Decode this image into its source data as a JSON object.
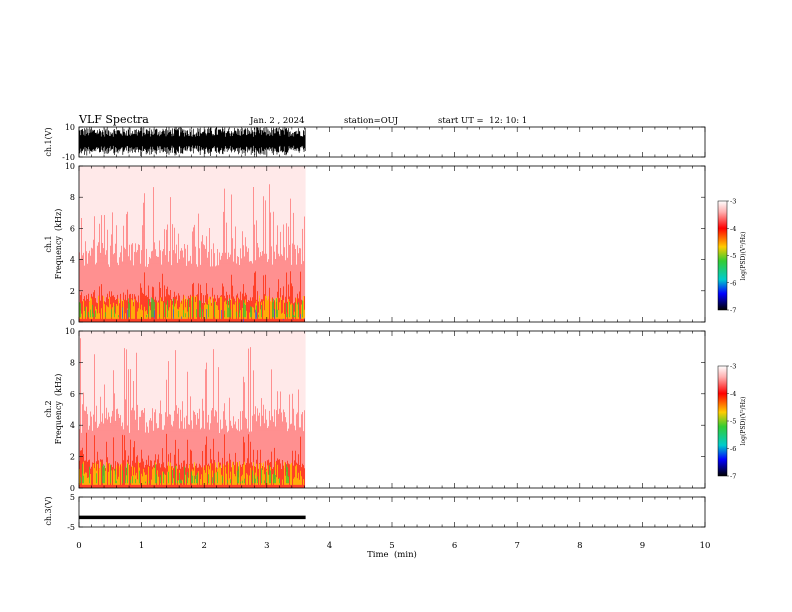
{
  "header": {
    "title": "VLF Spectra",
    "date": "Jan. 2 , 2024",
    "station": "station=OUJ",
    "start": "start UT =  12: 10: 1"
  },
  "colors": {
    "waveform": "#000000",
    "spec_high": "#ff0000",
    "spec_mid": "#ffcc00",
    "spec_low": "#00cc00"
  },
  "chart_data": [
    {
      "type": "line",
      "ylabel": "ch.1(V)",
      "ylim": [
        -10,
        10
      ],
      "yticks": [
        "10",
        "-10"
      ],
      "xlim": [
        0,
        10
      ],
      "data_extent_min": [
        0,
        3.62
      ],
      "description_values": {
        "amplitude_range": [
          -10,
          10
        ]
      }
    },
    {
      "type": "heatmap",
      "ylabel_line1": "ch.1",
      "ylabel_line2": "Frequency  (kHz)",
      "ylim": [
        0,
        10
      ],
      "yticks": [
        "0",
        "2",
        "4",
        "6",
        "8",
        "10"
      ],
      "xlim": [
        0,
        10
      ],
      "data_extent_min": [
        0,
        3.62
      ],
      "colorbar": {
        "label": "log(PSD)(V²/Hz)",
        "ticks": [
          "-3",
          "-4",
          "-5",
          "-6",
          "-7"
        ],
        "range": [
          -7,
          -3
        ]
      }
    },
    {
      "type": "heatmap",
      "ylabel_line1": "ch.2",
      "ylabel_line2": "Frequency  (kHz)",
      "ylim": [
        0,
        10
      ],
      "yticks": [
        "0",
        "2",
        "4",
        "6",
        "8",
        "10"
      ],
      "xlim": [
        0,
        10
      ],
      "data_extent_min": [
        0,
        3.62
      ],
      "colorbar": {
        "label": "log(PSD)(V²/Hz)",
        "ticks": [
          "-3",
          "-4",
          "-5",
          "-6",
          "-7"
        ],
        "range": [
          -7,
          -3
        ]
      }
    },
    {
      "type": "line",
      "ylabel": "ch.3(V)",
      "ylim": [
        -5,
        5
      ],
      "yticks": [
        "5",
        "-5"
      ],
      "xlim": [
        0,
        10
      ],
      "x": [
        0,
        3.62
      ],
      "y": [
        -1.8,
        -1.8
      ]
    }
  ],
  "xaxis": {
    "label": "Time  (min)",
    "ticks": [
      "0",
      "1",
      "2",
      "3",
      "4",
      "5",
      "6",
      "7",
      "8",
      "9",
      "10"
    ]
  }
}
